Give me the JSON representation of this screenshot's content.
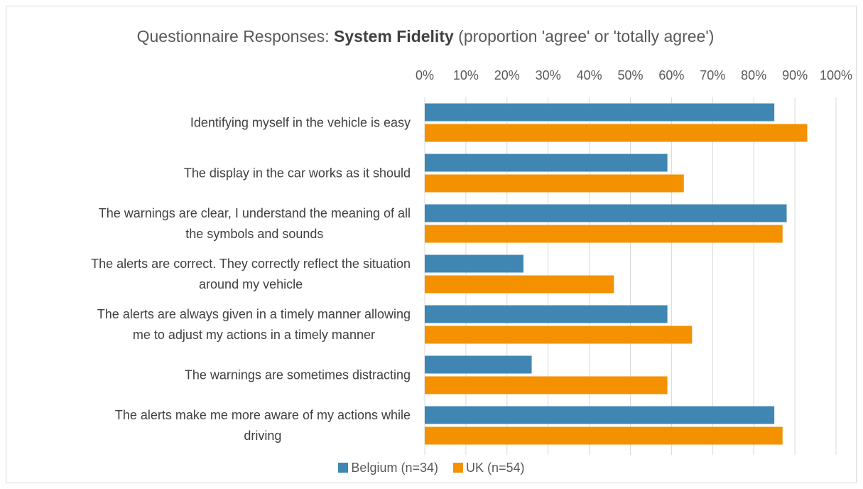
{
  "chart_data": {
    "type": "bar",
    "orientation": "horizontal",
    "title_prefix": "Questionnaire Responses: ",
    "title_bold": "System Fidelity",
    "title_suffix": " (proportion 'agree' or 'totally agree')",
    "xlim": [
      0,
      1
    ],
    "x_ticks": [
      "0%",
      "10%",
      "20%",
      "30%",
      "40%",
      "50%",
      "60%",
      "70%",
      "80%",
      "90%",
      "100%"
    ],
    "grid": true,
    "legend_position": "bottom",
    "categories": [
      [
        "Identifying myself in the vehicle is easy"
      ],
      [
        "The display in the car works as it should"
      ],
      [
        "The warnings are clear, I understand the meaning of all",
        "the symbols and sounds"
      ],
      [
        "The alerts are correct. They correctly reflect the situation",
        "around my vehicle"
      ],
      [
        "The alerts are always given in a timely manner allowing",
        "me to adjust my actions in a timely manner"
      ],
      [
        "The warnings are sometimes distracting"
      ],
      [
        "The alerts make me more aware of my actions while",
        "driving"
      ]
    ],
    "series": [
      {
        "name": "Belgium (n=34)",
        "color": "#3f87b2",
        "values": [
          0.85,
          0.59,
          0.88,
          0.24,
          0.59,
          0.26,
          0.85
        ]
      },
      {
        "name": "UK (n=54)",
        "color": "#f39100",
        "values": [
          0.93,
          0.63,
          0.87,
          0.46,
          0.65,
          0.59,
          0.87
        ]
      }
    ]
  }
}
